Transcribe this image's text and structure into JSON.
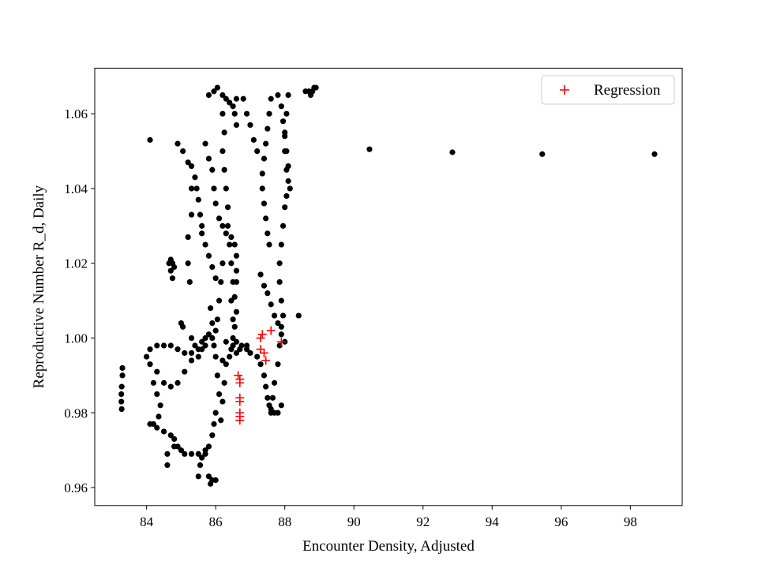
{
  "chart_data": {
    "type": "scatter",
    "title": "",
    "xlabel": "Encounter Density, Adjusted",
    "ylabel": "Reproductive Number R_d, Daily",
    "xlim": [
      82.5,
      99.5
    ],
    "ylim": [
      0.9552,
      1.0722
    ],
    "xticks": [
      84,
      86,
      88,
      90,
      92,
      94,
      96,
      98
    ],
    "yticks": [
      0.96,
      0.98,
      1.0,
      1.02,
      1.04,
      1.06
    ],
    "xtick_labels": [
      "84",
      "86",
      "88",
      "90",
      "92",
      "94",
      "96",
      "98"
    ],
    "ytick_labels": [
      "0.96",
      "0.98",
      "1.00",
      "1.02",
      "1.04",
      "1.06"
    ],
    "grid": false,
    "legend_position": "top-right",
    "series": [
      {
        "marker": "dot",
        "color": "#000000",
        "points": [
          [
            84.1,
            1.053
          ],
          [
            84.9,
            1.052
          ],
          [
            85.05,
            1.05
          ],
          [
            85.2,
            1.047
          ],
          [
            85.3,
            1.046
          ],
          [
            85.4,
            1.043
          ],
          [
            85.45,
            1.04
          ],
          [
            85.3,
            1.04
          ],
          [
            85.5,
            1.037
          ],
          [
            85.55,
            1.033
          ],
          [
            85.6,
            1.03
          ],
          [
            85.6,
            1.028
          ],
          [
            85.7,
            1.025
          ],
          [
            85.8,
            1.022
          ],
          [
            85.9,
            1.019
          ],
          [
            86.0,
            1.016
          ],
          [
            85.3,
            1.033
          ],
          [
            85.2,
            1.027
          ],
          [
            85.2,
            1.02
          ],
          [
            85.25,
            1.015
          ],
          [
            84.7,
            1.021
          ],
          [
            84.75,
            1.02
          ],
          [
            84.8,
            1.019
          ],
          [
            84.7,
            1.018
          ],
          [
            84.75,
            1.016
          ],
          [
            84.65,
            1.02
          ],
          [
            85.7,
            1.052
          ],
          [
            85.8,
            1.048
          ],
          [
            85.9,
            1.045
          ],
          [
            85.95,
            1.04
          ],
          [
            86.0,
            1.036
          ],
          [
            86.1,
            1.032
          ],
          [
            86.2,
            1.03
          ],
          [
            86.3,
            1.028
          ],
          [
            86.45,
            1.027
          ],
          [
            86.55,
            1.025
          ],
          [
            86.6,
            1.022
          ],
          [
            86.6,
            1.018
          ],
          [
            85.8,
            1.065
          ],
          [
            85.95,
            1.066
          ],
          [
            86.05,
            1.067
          ],
          [
            86.2,
            1.065
          ],
          [
            86.3,
            1.064
          ],
          [
            86.4,
            1.063
          ],
          [
            86.5,
            1.062
          ],
          [
            86.55,
            1.06
          ],
          [
            86.6,
            1.057
          ],
          [
            86.6,
            1.064
          ],
          [
            86.2,
            1.06
          ],
          [
            86.25,
            1.055
          ],
          [
            86.2,
            1.05
          ],
          [
            86.25,
            1.045
          ],
          [
            86.3,
            1.04
          ],
          [
            86.35,
            1.035
          ],
          [
            86.35,
            1.03
          ],
          [
            86.4,
            1.025
          ],
          [
            86.45,
            1.02
          ],
          [
            86.5,
            1.015
          ],
          [
            86.45,
            1.01
          ],
          [
            86.5,
            1.005
          ],
          [
            86.5,
            1.0
          ],
          [
            86.45,
            0.997
          ],
          [
            86.8,
            1.064
          ],
          [
            86.9,
            1.06
          ],
          [
            87.0,
            1.057
          ],
          [
            87.1,
            1.053
          ],
          [
            87.2,
            1.05
          ],
          [
            86.6,
            1.015
          ],
          [
            86.55,
            1.011
          ],
          [
            86.6,
            1.007
          ],
          [
            86.55,
            1.003
          ],
          [
            86.6,
            0.999
          ],
          [
            86.2,
            1.02
          ],
          [
            86.15,
            1.015
          ],
          [
            86.1,
            1.01
          ],
          [
            86.05,
            1.005
          ],
          [
            86.0,
            1.002
          ],
          [
            85.9,
            1.0
          ],
          [
            85.8,
            1.001
          ],
          [
            85.7,
            1.0
          ],
          [
            85.6,
            0.999
          ],
          [
            85.85,
            1.008
          ],
          [
            85.9,
            1.004
          ],
          [
            85.95,
            0.998
          ],
          [
            86.0,
            0.995
          ],
          [
            86.05,
            0.99
          ],
          [
            86.1,
            0.985
          ],
          [
            86.0,
            0.98
          ],
          [
            85.95,
            0.977
          ],
          [
            85.9,
            0.974
          ],
          [
            85.8,
            0.971
          ],
          [
            85.7,
            0.969
          ],
          [
            85.6,
            0.968
          ],
          [
            85.55,
            0.966
          ],
          [
            85.5,
            0.963
          ],
          [
            85.8,
            0.963
          ],
          [
            85.85,
            0.961
          ],
          [
            85.9,
            0.962
          ],
          [
            86.0,
            0.962
          ],
          [
            86.3,
            0.999
          ],
          [
            86.5,
            0.998
          ],
          [
            86.7,
            0.997
          ],
          [
            86.9,
            0.997
          ],
          [
            87.0,
            0.996
          ],
          [
            87.2,
            0.995
          ],
          [
            87.3,
            0.993
          ],
          [
            87.4,
            0.99
          ],
          [
            87.45,
            0.987
          ],
          [
            87.5,
            0.984
          ],
          [
            87.55,
            0.982
          ],
          [
            87.6,
            0.98
          ],
          [
            87.7,
            0.98
          ],
          [
            87.8,
            0.98
          ],
          [
            87.9,
            0.982
          ],
          [
            86.2,
            0.994
          ],
          [
            86.4,
            0.995
          ],
          [
            86.6,
            0.996
          ],
          [
            86.75,
            0.998
          ],
          [
            86.9,
            0.998
          ],
          [
            86.3,
            0.993
          ],
          [
            86.25,
            0.988
          ],
          [
            86.2,
            0.983
          ],
          [
            86.15,
            0.978
          ],
          [
            84.1,
            0.997
          ],
          [
            84.3,
            0.998
          ],
          [
            84.5,
            0.998
          ],
          [
            84.7,
            0.998
          ],
          [
            84.9,
            0.997
          ],
          [
            85.1,
            0.996
          ],
          [
            85.3,
            0.996
          ],
          [
            85.5,
            0.997
          ],
          [
            85.7,
            0.998
          ],
          [
            84.0,
            0.995
          ],
          [
            84.1,
            0.993
          ],
          [
            84.3,
            0.991
          ],
          [
            84.5,
            0.988
          ],
          [
            84.7,
            0.987
          ],
          [
            84.9,
            0.988
          ],
          [
            85.1,
            0.991
          ],
          [
            85.3,
            0.994
          ],
          [
            85.5,
            0.995
          ],
          [
            85.6,
            0.997
          ],
          [
            85.0,
            1.004
          ],
          [
            85.05,
            1.003
          ],
          [
            85.3,
            1.0
          ],
          [
            85.4,
            0.998
          ],
          [
            83.3,
            0.992
          ],
          [
            83.3,
            0.99
          ],
          [
            83.28,
            0.987
          ],
          [
            83.27,
            0.985
          ],
          [
            83.27,
            0.983
          ],
          [
            83.28,
            0.981
          ],
          [
            84.2,
            0.988
          ],
          [
            84.3,
            0.985
          ],
          [
            84.4,
            0.982
          ],
          [
            84.35,
            0.979
          ],
          [
            84.2,
            0.977
          ],
          [
            84.1,
            0.977
          ],
          [
            84.3,
            0.976
          ],
          [
            84.5,
            0.975
          ],
          [
            84.7,
            0.974
          ],
          [
            84.8,
            0.973
          ],
          [
            84.9,
            0.971
          ],
          [
            85.0,
            0.97
          ],
          [
            85.1,
            0.969
          ],
          [
            85.3,
            0.969
          ],
          [
            85.5,
            0.969
          ],
          [
            85.7,
            0.97
          ],
          [
            84.6,
            0.966
          ],
          [
            84.6,
            0.969
          ],
          [
            84.8,
            0.971
          ],
          [
            87.8,
            1.065
          ],
          [
            87.9,
            1.062
          ],
          [
            87.95,
            1.058
          ],
          [
            88.0,
            1.054
          ],
          [
            88.05,
            1.05
          ],
          [
            88.1,
            1.046
          ],
          [
            88.1,
            1.042
          ],
          [
            88.05,
            1.038
          ],
          [
            88.0,
            1.035
          ],
          [
            87.95,
            1.03
          ],
          [
            87.9,
            1.025
          ],
          [
            87.85,
            1.02
          ],
          [
            87.85,
            1.015
          ],
          [
            87.9,
            1.01
          ],
          [
            87.95,
            1.006
          ],
          [
            87.9,
            1.003
          ],
          [
            87.85,
            0.998
          ],
          [
            87.8,
            0.993
          ],
          [
            87.7,
            0.988
          ],
          [
            87.65,
            0.984
          ],
          [
            87.6,
            0.981
          ],
          [
            88.1,
            1.065
          ],
          [
            88.05,
            1.06
          ],
          [
            88.0,
            1.055
          ],
          [
            88.0,
            1.05
          ],
          [
            88.05,
            1.045
          ],
          [
            88.15,
            1.04
          ],
          [
            87.6,
            1.064
          ],
          [
            87.55,
            1.06
          ],
          [
            87.5,
            1.056
          ],
          [
            87.45,
            1.052
          ],
          [
            87.4,
            1.048
          ],
          [
            87.35,
            1.044
          ],
          [
            87.35,
            1.04
          ],
          [
            87.4,
            1.036
          ],
          [
            87.45,
            1.032
          ],
          [
            87.5,
            1.028
          ],
          [
            87.55,
            1.025
          ],
          [
            87.3,
            1.017
          ],
          [
            87.4,
            1.014
          ],
          [
            87.5,
            1.012
          ],
          [
            87.6,
            1.009
          ],
          [
            87.7,
            1.006
          ],
          [
            87.8,
            1.004
          ],
          [
            87.9,
            1.001
          ],
          [
            88.0,
            0.999
          ],
          [
            88.7,
            1.066
          ],
          [
            88.75,
            1.065
          ],
          [
            88.8,
            1.066
          ],
          [
            88.85,
            1.067
          ],
          [
            88.9,
            1.067
          ],
          [
            88.6,
            1.066
          ],
          [
            88.4,
            1.006
          ],
          [
            90.45,
            1.0505
          ],
          [
            92.85,
            1.0497
          ],
          [
            95.45,
            1.0492
          ],
          [
            98.7,
            1.0492
          ]
        ]
      },
      {
        "name": "Regression",
        "marker": "plus",
        "color": "#ff0000",
        "points": [
          [
            86.65,
            0.99
          ],
          [
            86.7,
            0.989
          ],
          [
            86.7,
            0.988
          ],
          [
            86.7,
            0.984
          ],
          [
            86.7,
            0.983
          ],
          [
            86.7,
            0.98
          ],
          [
            86.7,
            0.979
          ],
          [
            86.7,
            0.978
          ],
          [
            87.3,
            1.0
          ],
          [
            87.35,
            1.001
          ],
          [
            87.3,
            0.997
          ],
          [
            87.4,
            0.996
          ],
          [
            87.45,
            0.994
          ],
          [
            87.6,
            1.002
          ],
          [
            87.9,
            0.999
          ]
        ]
      }
    ]
  }
}
